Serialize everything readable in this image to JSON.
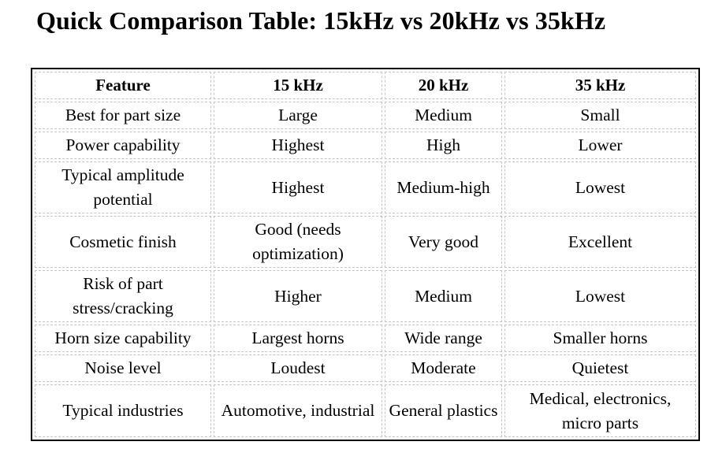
{
  "title": "Quick Comparison Table: 15kHz vs 20kHz vs 35kHz",
  "table": {
    "headers": [
      "Feature",
      "15 kHz",
      "20 kHz",
      "35 kHz"
    ],
    "rows": [
      {
        "feature": "Best for part size",
        "khz15": "Large",
        "khz20": "Medium",
        "khz35": "Small"
      },
      {
        "feature": "Power capability",
        "khz15": "Highest",
        "khz20": "High",
        "khz35": "Lower"
      },
      {
        "feature": "Typical amplitude potential",
        "khz15": "Highest",
        "khz20": "Medium-high",
        "khz35": "Lowest"
      },
      {
        "feature": "Cosmetic finish",
        "khz15": "Good (needs optimization)",
        "khz20": "Very good",
        "khz35": "Excellent"
      },
      {
        "feature": "Risk of part stress/cracking",
        "khz15": "Higher",
        "khz20": "Medium",
        "khz35": "Lowest"
      },
      {
        "feature": "Horn size capability",
        "khz15": "Largest horns",
        "khz20": "Wide range",
        "khz35": "Smaller horns"
      },
      {
        "feature": "Noise level",
        "khz15": "Loudest",
        "khz20": "Moderate",
        "khz35": "Quietest"
      },
      {
        "feature": "Typical industries",
        "khz15": "Automotive, industrial",
        "khz20": "General plastics",
        "khz35": "Medical, electronics, micro parts"
      }
    ]
  }
}
